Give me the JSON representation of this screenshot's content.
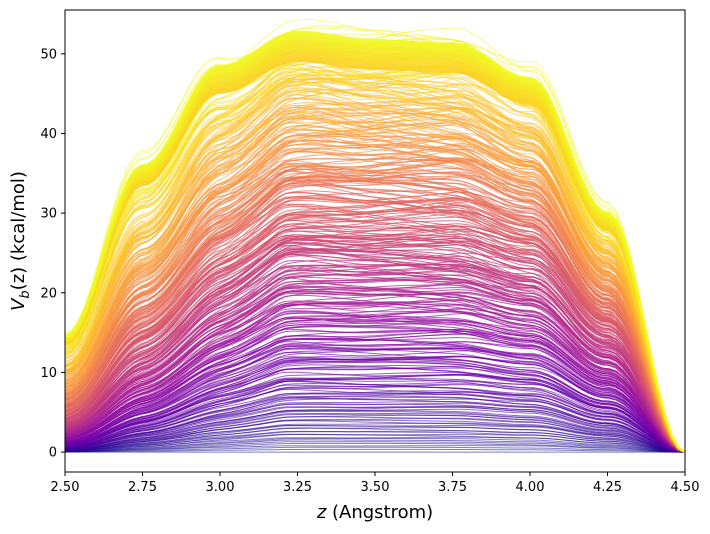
{
  "chart_data": {
    "type": "line",
    "title": "",
    "xlabel_var": "z",
    "xlabel_rest": " (Angstrom)",
    "ylabel_var": "V",
    "ylabel_sub": "b",
    "ylabel_rest": "(z) (kcal/mol)",
    "xlim": [
      2.5,
      4.5
    ],
    "ylim": [
      -2.5,
      55.5
    ],
    "xticks": [
      2.5,
      2.75,
      3.0,
      3.25,
      3.5,
      3.75,
      4.0,
      4.25,
      4.5
    ],
    "xtick_labels": [
      "2.50",
      "2.75",
      "3.00",
      "3.25",
      "3.50",
      "3.75",
      "4.00",
      "4.25",
      "4.50"
    ],
    "yticks": [
      0,
      10,
      20,
      30,
      40,
      50
    ],
    "ytick_labels": [
      "0",
      "10",
      "20",
      "30",
      "40",
      "50"
    ],
    "grid": false,
    "colormap": "plasma",
    "colormap_stops": [
      "#0d0887",
      "#41049d",
      "#6a00a8",
      "#8f0da4",
      "#b12a90",
      "#cc4778",
      "#e16462",
      "#f2844b",
      "#fca636",
      "#fcce25",
      "#f0f921"
    ],
    "series_count": 400,
    "envelope_points": [
      {
        "z": 2.5,
        "v": 14.5
      },
      {
        "z": 2.75,
        "v": 36.0
      },
      {
        "z": 3.0,
        "v": 48.5
      },
      {
        "z": 3.25,
        "v": 52.8
      },
      {
        "z": 3.5,
        "v": 51.7
      },
      {
        "z": 3.75,
        "v": 51.3
      },
      {
        "z": 4.0,
        "v": 47.0
      },
      {
        "z": 4.25,
        "v": 30.0
      },
      {
        "z": 4.5,
        "v": 0.0
      }
    ]
  }
}
